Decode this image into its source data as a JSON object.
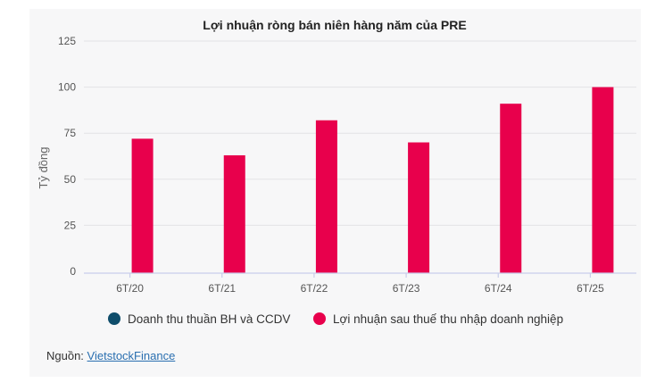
{
  "chart_data": {
    "type": "bar",
    "title": "Lợi nhuận ròng bán niên hàng năm của PRE",
    "ylabel": "Tỷ đồng",
    "xlabel": "",
    "categories": [
      "6T/20",
      "6T/21",
      "6T/22",
      "6T/23",
      "6T/24",
      "6T/25"
    ],
    "yticks": [
      "0",
      "25",
      "50",
      "75",
      "100",
      "125"
    ],
    "ylim": [
      0,
      125
    ],
    "grid": true,
    "legend_position": "bottom",
    "series": [
      {
        "name": "Doanh thu thuần BH và CCDV",
        "color": "#0f4d6b",
        "values": [
          0,
          0,
          0,
          0,
          0,
          0
        ]
      },
      {
        "name": "Lợi nhuận sau thuế thu nhập doanh nghiệp",
        "color": "#e8004c",
        "values": [
          72,
          63,
          82,
          70,
          91,
          100
        ]
      }
    ]
  },
  "source": {
    "label": "Nguồn:",
    "link_text": "VietstockFinance"
  }
}
